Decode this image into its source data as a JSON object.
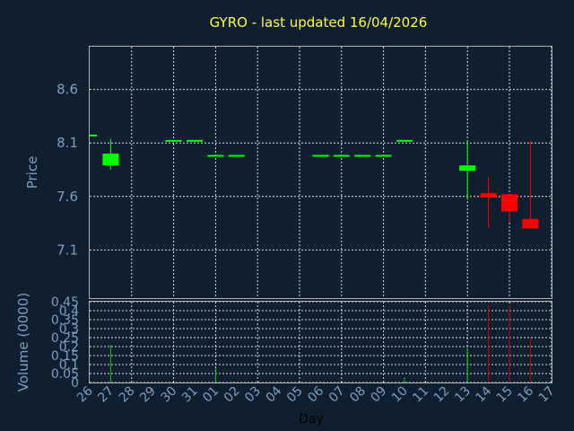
{
  "chart_data": {
    "type": "candlestick",
    "title": "GYRO - last updated 16/04/2026",
    "xlabel": "Day",
    "colors": {
      "background": "#0f1f30",
      "title": "#ffff33",
      "axis_text": "#7f9fbf",
      "up": "#00ff00",
      "down": "#ff0000",
      "up_volume": "#00cc00",
      "down_volume": "#cc0000"
    },
    "price_panel": {
      "ylabel": "Price",
      "ylim": [
        6.65,
        9.0
      ],
      "yticks": [
        "7.1",
        "7.6",
        "8.1",
        "8.6"
      ],
      "grid": true
    },
    "volume_panel": {
      "ylabel": "Volume (0000)",
      "ylim": [
        0,
        0.45
      ],
      "yticks": [
        "0",
        "0.05",
        "0.1",
        "0.15",
        "0.2",
        "0.25",
        "0.3",
        "0.35",
        "0.4",
        "0.45"
      ],
      "grid": true
    },
    "x_ticks": [
      "26",
      "27",
      "28",
      "29",
      "30",
      "31",
      "01",
      "02",
      "03",
      "04",
      "05",
      "06",
      "07",
      "08",
      "09",
      "10",
      "11",
      "12",
      "13",
      "14",
      "15",
      "16",
      "17"
    ],
    "candles": [
      {
        "day": "26",
        "open": 8.17,
        "high": 8.17,
        "low": 8.17,
        "close": 8.17,
        "volume": 0.0
      },
      {
        "day": "27",
        "open": 7.89,
        "high": 8.14,
        "low": 7.85,
        "close": 8.0,
        "volume": 0.21
      },
      {
        "day": "30",
        "open": 8.12,
        "high": 8.12,
        "low": 8.12,
        "close": 8.12,
        "volume": 0.0
      },
      {
        "day": "31",
        "open": 8.12,
        "high": 8.12,
        "low": 8.12,
        "close": 8.12,
        "volume": 0.0
      },
      {
        "day": "01",
        "open": 7.98,
        "high": 7.98,
        "low": 7.98,
        "close": 7.98,
        "volume": 0.08
      },
      {
        "day": "02",
        "open": 7.98,
        "high": 7.98,
        "low": 7.98,
        "close": 7.98,
        "volume": 0.0
      },
      {
        "day": "06",
        "open": 7.98,
        "high": 7.98,
        "low": 7.98,
        "close": 7.98,
        "volume": 0.0
      },
      {
        "day": "07",
        "open": 7.98,
        "high": 7.98,
        "low": 7.98,
        "close": 7.98,
        "volume": 0.0
      },
      {
        "day": "08",
        "open": 7.98,
        "high": 7.98,
        "low": 7.98,
        "close": 7.98,
        "volume": 0.0
      },
      {
        "day": "09",
        "open": 7.98,
        "high": 7.98,
        "low": 7.98,
        "close": 7.98,
        "volume": 0.0
      },
      {
        "day": "10",
        "open": 8.12,
        "high": 8.12,
        "low": 8.12,
        "close": 8.12,
        "volume": 0.03
      },
      {
        "day": "13",
        "open": 7.84,
        "high": 8.12,
        "low": 7.57,
        "close": 7.89,
        "volume": 0.19
      },
      {
        "day": "14",
        "open": 7.63,
        "high": 7.78,
        "low": 7.31,
        "close": 7.59,
        "volume": 0.43
      },
      {
        "day": "15",
        "open": 7.62,
        "high": 7.62,
        "low": 7.36,
        "close": 7.46,
        "volume": 0.43
      },
      {
        "day": "16",
        "open": 7.39,
        "high": 8.12,
        "low": 7.3,
        "close": 7.3,
        "volume": 0.25
      }
    ]
  }
}
